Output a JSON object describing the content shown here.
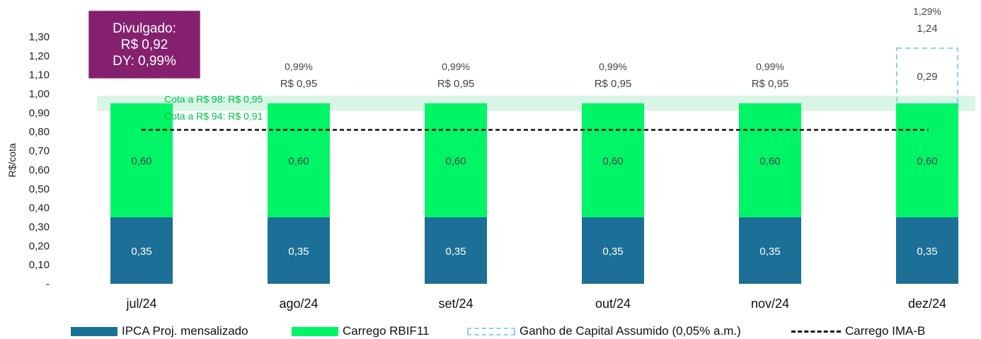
{
  "chart_data": {
    "type": "bar",
    "stacked": true,
    "ylabel": "R$/cota",
    "ylim": [
      0,
      1.3
    ],
    "yticks": [
      "-",
      "0,10",
      "0,20",
      "0,30",
      "0,40",
      "0,50",
      "0,60",
      "0,70",
      "0,80",
      "0,90",
      "1,00",
      "1,10",
      "1,20",
      "1,30"
    ],
    "categories": [
      "jul/24",
      "ago/24",
      "set/24",
      "out/24",
      "nov/24",
      "dez/24"
    ],
    "series": [
      {
        "name": "IPCA Proj. mensalizado",
        "color": "#1c6f96",
        "values": [
          0.35,
          0.35,
          0.35,
          0.35,
          0.35,
          0.35
        ],
        "labels": [
          "0,35",
          "0,35",
          "0,35",
          "0,35",
          "0,35",
          "0,35"
        ]
      },
      {
        "name": "Carrego RBIF11",
        "color": "#00f566",
        "values": [
          0.6,
          0.6,
          0.6,
          0.6,
          0.6,
          0.6
        ],
        "labels": [
          "0,60",
          "0,60",
          "0,60",
          "0,60",
          "0,60",
          "0,60"
        ]
      },
      {
        "name": "Ganho de Capital Assumido (0,05% a.m.)",
        "color": "#8fd0ea",
        "style": "dashed-outline",
        "values": [
          0,
          0,
          0,
          0,
          0,
          0.29
        ],
        "labels": [
          "",
          "",
          "",
          "",
          "",
          "0,29"
        ]
      }
    ],
    "line": {
      "name": "Carrego IMA-B",
      "value": 0.81,
      "color": "#111111",
      "style": "dashed"
    },
    "top_labels": [
      {
        "pct": "",
        "value": ""
      },
      {
        "pct": "0,99%",
        "value": "R$ 0,95"
      },
      {
        "pct": "0,99%",
        "value": "R$ 0,95"
      },
      {
        "pct": "0,99%",
        "value": "R$ 0,95"
      },
      {
        "pct": "0,99%",
        "value": "R$ 0,95"
      },
      {
        "pct": "1,29%",
        "value": "1,24"
      }
    ],
    "band": {
      "from": 0.91,
      "to": 0.99,
      "color": "#d9f5e6"
    },
    "band_annotations": [
      "Cota a R$ 98: R$ 0,95",
      "Cota a R$ 94: R$ 0,91"
    ],
    "annotation_color": "#00c04b",
    "grid": false,
    "legend_position": "bottom"
  },
  "callout": {
    "lines": [
      "Divulgado:",
      "R$ 0,92",
      "DY: 0,99%"
    ],
    "color": "#85206e"
  }
}
